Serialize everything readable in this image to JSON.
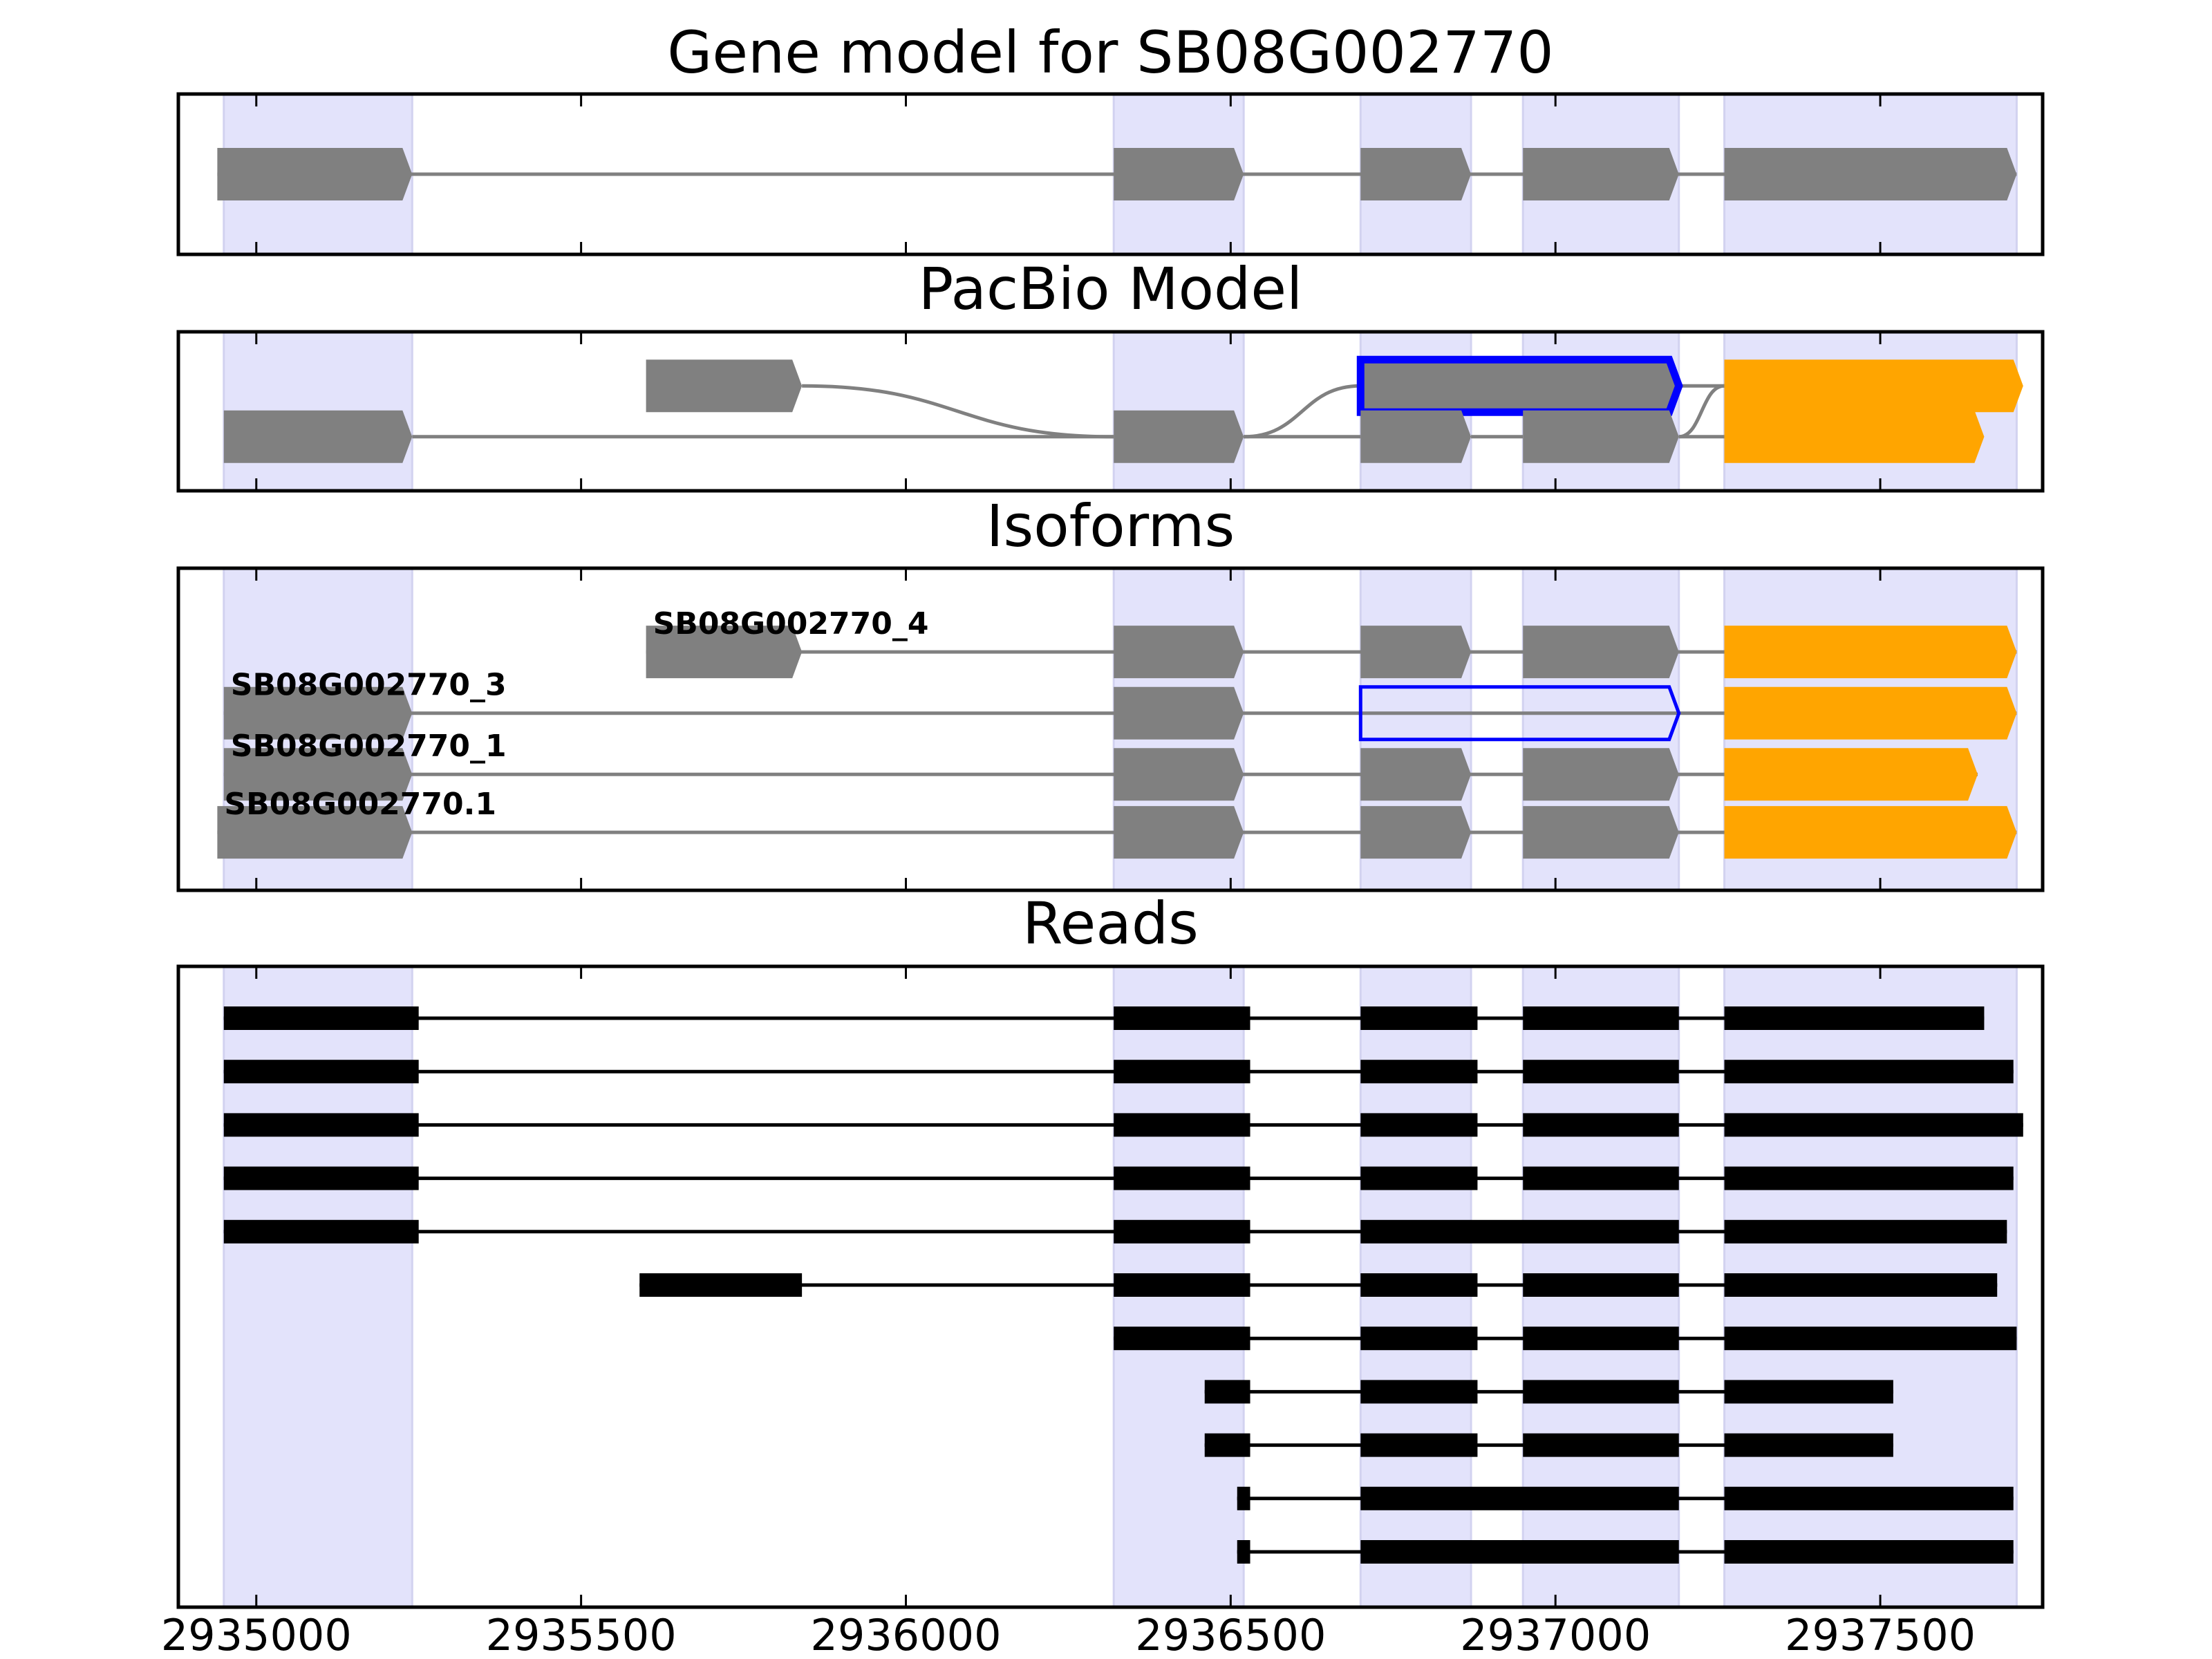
{
  "figure": {
    "panel_titles": [
      "Gene model for SB08G002770",
      "PacBio Model",
      "Isoforms",
      "Reads"
    ]
  },
  "colors": {
    "exon_gray": "#808080",
    "utr_orange": "#FFA500",
    "highlight_blue": "#0000FF",
    "region_shade": "#E3E3FB",
    "read_black": "#000000",
    "intron_gray": "#808080"
  },
  "chart_data": [
    {
      "type": "gene-track",
      "title": "Gene model for SB08G002770",
      "x_range": [
        2934880,
        2937750
      ],
      "shaded_regions": [
        [
          2934950,
          2935240
        ],
        [
          2936320,
          2936520
        ],
        [
          2936700,
          2936870
        ],
        [
          2936950,
          2937190
        ],
        [
          2937260,
          2937710
        ]
      ],
      "transcripts": [
        {
          "label": "",
          "y": 0.5,
          "exons": [
            {
              "start": 2934940,
              "end": 2935240,
              "color": "gray"
            },
            {
              "start": 2936320,
              "end": 2936520,
              "color": "gray"
            },
            {
              "start": 2936700,
              "end": 2936870,
              "color": "gray"
            },
            {
              "start": 2936950,
              "end": 2937190,
              "color": "gray"
            },
            {
              "start": 2937260,
              "end": 2937710,
              "color": "gray"
            }
          ]
        }
      ]
    },
    {
      "type": "gene-track",
      "title": "PacBio Model",
      "x_range": [
        2934880,
        2937750
      ],
      "shaded_regions": [
        [
          2934950,
          2935240
        ],
        [
          2936320,
          2936520
        ],
        [
          2936700,
          2936870
        ],
        [
          2936950,
          2937190
        ],
        [
          2937260,
          2937710
        ]
      ],
      "nodes": [
        {
          "id": "a1",
          "start": 2935600,
          "end": 2935840,
          "y": 0.34,
          "color": "gray"
        },
        {
          "id": "a2",
          "start": 2934950,
          "end": 2935240,
          "y": 0.66,
          "color": "gray"
        },
        {
          "id": "b",
          "start": 2936320,
          "end": 2936520,
          "y": 0.66,
          "color": "gray"
        },
        {
          "id": "c1",
          "start": 2936700,
          "end": 2937190,
          "y": 0.34,
          "color": "gray",
          "highlight": true
        },
        {
          "id": "c2",
          "start": 2936700,
          "end": 2936870,
          "y": 0.66,
          "color": "gray"
        },
        {
          "id": "d2",
          "start": 2936950,
          "end": 2937190,
          "y": 0.66,
          "color": "gray"
        },
        {
          "id": "e1",
          "start": 2937260,
          "end": 2937720,
          "y": 0.34,
          "color": "orange"
        },
        {
          "id": "e2",
          "start": 2937260,
          "end": 2937660,
          "y": 0.66,
          "color": "orange"
        }
      ],
      "edges": [
        [
          "a1",
          "b"
        ],
        [
          "a2",
          "b"
        ],
        [
          "b",
          "c1"
        ],
        [
          "b",
          "c2"
        ],
        [
          "c2",
          "d2"
        ],
        [
          "c1",
          "e1"
        ],
        [
          "d2",
          "e1"
        ],
        [
          "d2",
          "e2"
        ]
      ]
    },
    {
      "type": "gene-track",
      "title": "Isoforms",
      "x_range": [
        2934880,
        2937750
      ],
      "shaded_regions": [
        [
          2934950,
          2935240
        ],
        [
          2936320,
          2936520
        ],
        [
          2936700,
          2936870
        ],
        [
          2936950,
          2937190
        ],
        [
          2937260,
          2937710
        ]
      ],
      "transcripts": [
        {
          "label": "SB08G002770_4",
          "y": 0.26,
          "exons": [
            {
              "start": 2935600,
              "end": 2935840,
              "color": "gray"
            },
            {
              "start": 2936320,
              "end": 2936520,
              "color": "gray"
            },
            {
              "start": 2936700,
              "end": 2936870,
              "color": "gray"
            },
            {
              "start": 2936950,
              "end": 2937190,
              "color": "gray"
            },
            {
              "start": 2937260,
              "end": 2937710,
              "color": "orange"
            }
          ]
        },
        {
          "label": "SB08G002770_3",
          "y": 0.45,
          "exons": [
            {
              "start": 2934950,
              "end": 2935240,
              "color": "gray"
            },
            {
              "start": 2936320,
              "end": 2936520,
              "color": "gray"
            },
            {
              "start": 2936700,
              "end": 2937190,
              "color": "outline-blue"
            },
            {
              "start": 2937260,
              "end": 2937710,
              "color": "orange"
            }
          ]
        },
        {
          "label": "SB08G002770_1",
          "y": 0.64,
          "exons": [
            {
              "start": 2934950,
              "end": 2935240,
              "color": "gray"
            },
            {
              "start": 2936320,
              "end": 2936520,
              "color": "gray"
            },
            {
              "start": 2936700,
              "end": 2936870,
              "color": "gray"
            },
            {
              "start": 2936950,
              "end": 2937190,
              "color": "gray"
            },
            {
              "start": 2937260,
              "end": 2937650,
              "color": "orange"
            }
          ]
        },
        {
          "label": "SB08G002770.1",
          "y": 0.82,
          "exons": [
            {
              "start": 2934940,
              "end": 2935240,
              "color": "gray"
            },
            {
              "start": 2936320,
              "end": 2936520,
              "color": "gray"
            },
            {
              "start": 2936700,
              "end": 2936870,
              "color": "gray"
            },
            {
              "start": 2936950,
              "end": 2937190,
              "color": "gray"
            },
            {
              "start": 2937260,
              "end": 2937710,
              "color": "orange"
            }
          ]
        }
      ]
    },
    {
      "type": "read-track",
      "title": "Reads",
      "x_range": [
        2934880,
        2937750
      ],
      "x_ticks": [
        2935000,
        2935500,
        2936000,
        2936500,
        2937000,
        2937500
      ],
      "shaded_regions": [
        [
          2934950,
          2935240
        ],
        [
          2936320,
          2936520
        ],
        [
          2936700,
          2936870
        ],
        [
          2936950,
          2937190
        ],
        [
          2937260,
          2937710
        ]
      ],
      "reads": [
        [
          [
            2934950,
            2935250
          ],
          [
            2936320,
            2936530
          ],
          [
            2936700,
            2936880
          ],
          [
            2936950,
            2937190
          ],
          [
            2937260,
            2937660
          ]
        ],
        [
          [
            2934950,
            2935250
          ],
          [
            2936320,
            2936530
          ],
          [
            2936700,
            2936880
          ],
          [
            2936950,
            2937190
          ],
          [
            2937260,
            2937705
          ]
        ],
        [
          [
            2934950,
            2935250
          ],
          [
            2936320,
            2936530
          ],
          [
            2936700,
            2936880
          ],
          [
            2936950,
            2937190
          ],
          [
            2937260,
            2937720
          ]
        ],
        [
          [
            2934950,
            2935250
          ],
          [
            2936320,
            2936530
          ],
          [
            2936700,
            2936880
          ],
          [
            2936950,
            2937190
          ],
          [
            2937260,
            2937705
          ]
        ],
        [
          [
            2934950,
            2935250
          ],
          [
            2936320,
            2936530
          ],
          [
            2936700,
            2937190
          ],
          [
            2937260,
            2937695
          ]
        ],
        [
          [
            2935590,
            2935840
          ],
          [
            2936320,
            2936530
          ],
          [
            2936700,
            2936880
          ],
          [
            2936950,
            2937190
          ],
          [
            2937260,
            2937680
          ]
        ],
        [
          [
            2936320,
            2936530
          ],
          [
            2936700,
            2936880
          ],
          [
            2936950,
            2937190
          ],
          [
            2937260,
            2937710
          ]
        ],
        [
          [
            2936460,
            2936530
          ],
          [
            2936700,
            2936880
          ],
          [
            2936950,
            2937190
          ],
          [
            2937260,
            2937520
          ]
        ],
        [
          [
            2936460,
            2936530
          ],
          [
            2936700,
            2936880
          ],
          [
            2936950,
            2937190
          ],
          [
            2937260,
            2937520
          ]
        ],
        [
          [
            2936510,
            2936530
          ],
          [
            2936700,
            2937190
          ],
          [
            2937260,
            2937705
          ]
        ],
        [
          [
            2936510,
            2936530
          ],
          [
            2936700,
            2937190
          ],
          [
            2937260,
            2937705
          ]
        ]
      ]
    }
  ]
}
